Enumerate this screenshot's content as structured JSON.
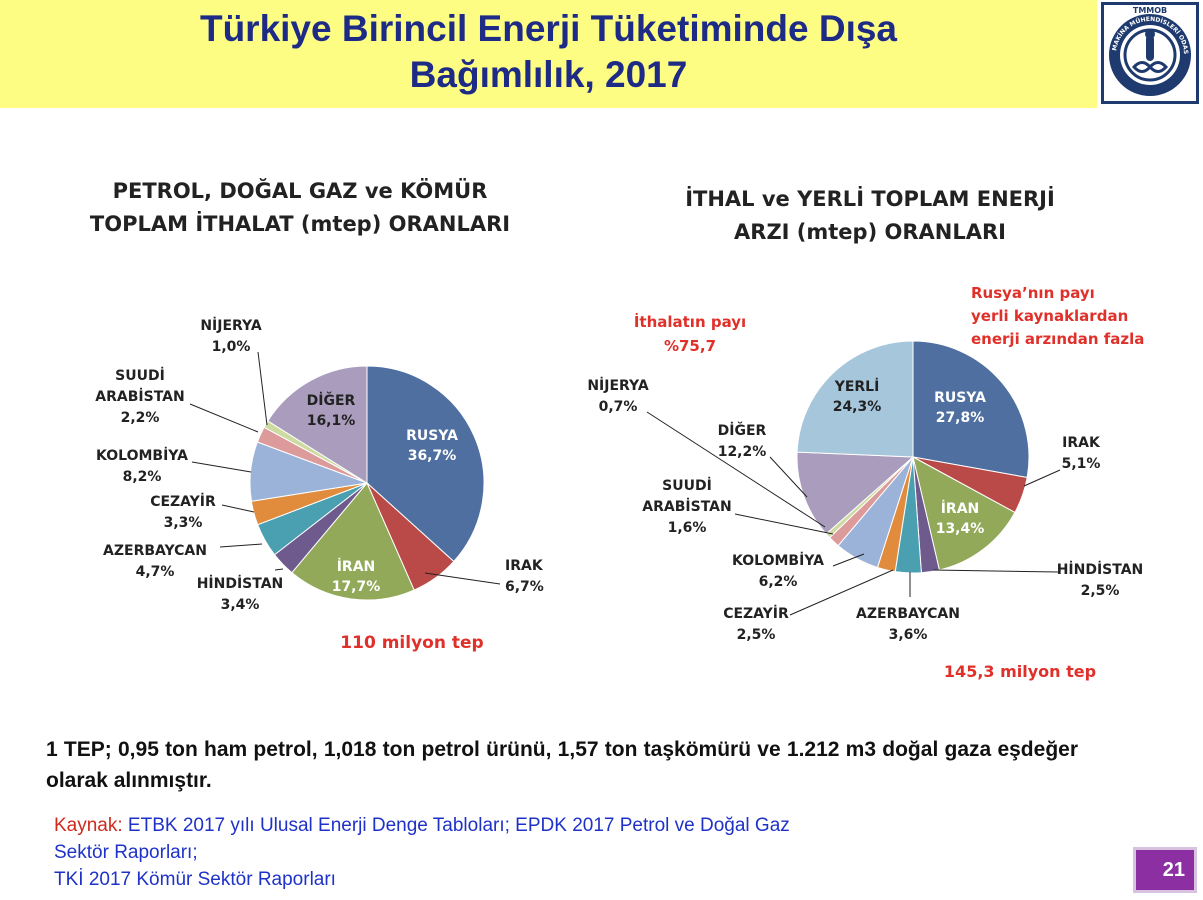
{
  "header": {
    "title_line1": "Türkiye Birincil Enerji Tüketiminde Dışa",
    "title_line2": "Bağımlılık, 2017",
    "logo_text": "TMMOB",
    "logo_ring_text": "MAKİNA MÜHENDİSLERİ ODASI",
    "background": "#fcfd82",
    "title_color": "#1e2b86"
  },
  "chart_data": [
    {
      "type": "pie",
      "title_line1": "PETROL, DOĞAL GAZ ve KÖMÜR",
      "title_line2": "TOPLAM  İTHALAT (mtep) ORANLARI",
      "total_label": "110 milyon tep",
      "slices": [
        {
          "name": "RUSYA",
          "value": 36.7,
          "label": "36,7%",
          "color": "#4f6fa0"
        },
        {
          "name": "IRAK",
          "value": 6.7,
          "label": "6,7%",
          "color": "#b94a48"
        },
        {
          "name": "İRAN",
          "value": 17.7,
          "label": "17,7%",
          "color": "#92a95a"
        },
        {
          "name": "HİNDİSTAN",
          "value": 3.4,
          "label": "3,4%",
          "color": "#6f5a8e"
        },
        {
          "name": "AZERBAYCAN",
          "value": 4.7,
          "label": "4,7%",
          "color": "#4a9fb1"
        },
        {
          "name": "CEZAYİR",
          "value": 3.3,
          "label": "3,3%",
          "color": "#e08c3c"
        },
        {
          "name": "KOLOMBİYA",
          "value": 8.2,
          "label": "8,2%",
          "color": "#9bb3d8"
        },
        {
          "name": "SUUDİ ARABİSTAN",
          "value": 2.2,
          "label": "2,2%",
          "color": "#dc9a9a"
        },
        {
          "name": "NİJERYA",
          "value": 1.0,
          "label": "1,0%",
          "color": "#cddba0"
        },
        {
          "name": "DİĞER",
          "value": 16.1,
          "label": "16,1%",
          "color": "#a99cbd"
        }
      ]
    },
    {
      "type": "pie",
      "title_line1": "İTHAL ve YERLİ TOPLAM  ENERJİ",
      "title_line2": "ARZI (mtep)  ORANLARI",
      "total_label": "145,3 milyon tep",
      "annotation_import_line1": "İthalatın payı",
      "annotation_import_line2": "%75,7",
      "annotation_russia_line1": "Rusya’nın payı",
      "annotation_russia_line2": "yerli kaynaklardan",
      "annotation_russia_line3": "enerji arzından fazla",
      "slices": [
        {
          "name": "RUSYA",
          "value": 27.8,
          "label": "27,8%",
          "color": "#4f6fa0"
        },
        {
          "name": "IRAK",
          "value": 5.1,
          "label": "5,1%",
          "color": "#b94a48"
        },
        {
          "name": "İRAN",
          "value": 13.4,
          "label": "13,4%",
          "color": "#92a95a"
        },
        {
          "name": "HİNDİSTAN",
          "value": 2.5,
          "label": "2,5%",
          "color": "#6f5a8e"
        },
        {
          "name": "AZERBAYCAN",
          "value": 3.6,
          "label": "3,6%",
          "color": "#4a9fb1"
        },
        {
          "name": "CEZAYİR",
          "value": 2.5,
          "label": "2,5%",
          "color": "#e08c3c"
        },
        {
          "name": "KOLOMBİYA",
          "value": 6.2,
          "label": "6,2%",
          "color": "#9bb3d8"
        },
        {
          "name": "SUUDİ ARABİSTAN",
          "value": 1.6,
          "label": "1,6%",
          "color": "#dc9a9a"
        },
        {
          "name": "NİJERYA",
          "value": 0.7,
          "label": "0,7%",
          "color": "#cddba0"
        },
        {
          "name": "DİĞER",
          "value": 12.2,
          "label": "12,2%",
          "color": "#a99cbd"
        },
        {
          "name": "YERLİ",
          "value": 24.3,
          "label": "24,3%",
          "color": "#a6c6dc"
        }
      ]
    }
  ],
  "note": "1 TEP; 0,95 ton ham petrol, 1,018 ton petrol ürünü, 1,57 ton taşkömürü ve 1.212 m3 doğal gaza eşdeğer olarak alınmıştır.",
  "source": {
    "label": "Kaynak:",
    "line1": " ETBK 2017 yılı Ulusal Enerji Denge Tabloları; EPDK 2017 Petrol ve Doğal Gaz",
    "line2": "Sektör Raporları;",
    "line3": "TKİ 2017 Kömür Sektör Raporları"
  },
  "page_number": "21",
  "colors": {
    "accent_red": "#e0302a",
    "page_badge": "#8b2fa3",
    "source_blue": "#1f32c8"
  }
}
